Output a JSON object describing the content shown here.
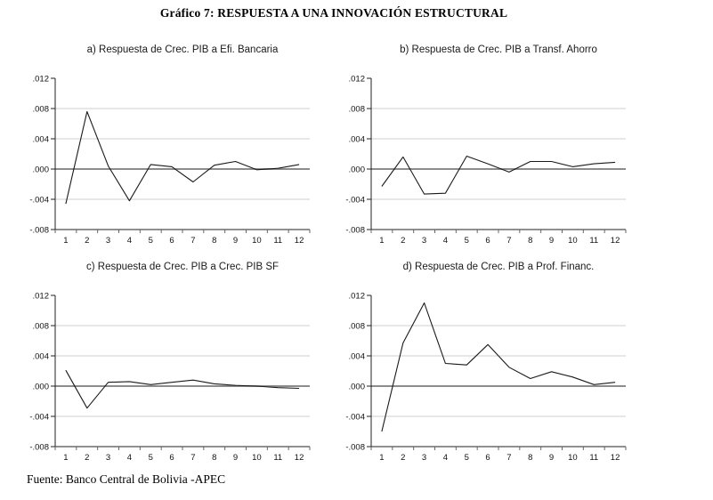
{
  "page": {
    "title": "Gráfico 7: RESPUESTA A UNA INNOVACIÓN ESTRUCTURAL",
    "source": "Fuente: Banco Central de Bolivia -APEC"
  },
  "chart_data": {
    "type": "line",
    "layout": "2x2 grid of impulse-response line charts, horizontal gridlines, heavy zero line, no legend",
    "x": [
      1,
      2,
      3,
      4,
      5,
      6,
      7,
      8,
      9,
      10,
      11,
      12
    ],
    "ylim": [
      -0.008,
      0.012
    ],
    "yticks": [
      0.012,
      0.008,
      0.004,
      0.0,
      -0.004,
      -0.008
    ],
    "ytick_labels": [
      ".012",
      ".008",
      ".004",
      ".000",
      "-.004",
      "-.008"
    ],
    "gridline_values": [
      0.008,
      0.004,
      -0.004
    ],
    "colors": {
      "line": "#1a1a1a",
      "zero_line": "#8c8c8c",
      "grid": "#cfcfcf",
      "axis": "#222222",
      "tick": "#666666",
      "text": "#111111"
    },
    "charts": [
      {
        "id": "a",
        "title": "a) Respuesta de Crec. PIB a Efi. Bancaria",
        "values": [
          -0.0046,
          0.0076,
          0.0004,
          -0.0042,
          0.0006,
          0.0003,
          -0.0017,
          0.0005,
          0.001,
          -0.0001,
          0.0001,
          0.0006
        ]
      },
      {
        "id": "b",
        "title": "b) Respuesta de Crec. PIB a Transf. Ahorro",
        "values": [
          -0.0023,
          0.0016,
          -0.0033,
          -0.0032,
          0.0017,
          0.0007,
          -0.0004,
          0.001,
          0.001,
          0.0003,
          0.0007,
          0.0009
        ]
      },
      {
        "id": "c",
        "title": "c) Respuesta de Crec. PIB a Crec. PIB SF",
        "values": [
          0.0021,
          -0.0029,
          0.0005,
          0.0006,
          0.0002,
          0.0005,
          0.0008,
          0.0003,
          0.0001,
          0.0,
          -0.0002,
          -0.0003
        ]
      },
      {
        "id": "d",
        "title": "d) Respuesta de Crec. PIB a Prof. Financ.",
        "values": [
          -0.006,
          0.0057,
          0.011,
          0.003,
          0.0028,
          0.0055,
          0.0025,
          0.001,
          0.0019,
          0.0012,
          0.0002,
          0.0005
        ]
      }
    ]
  }
}
